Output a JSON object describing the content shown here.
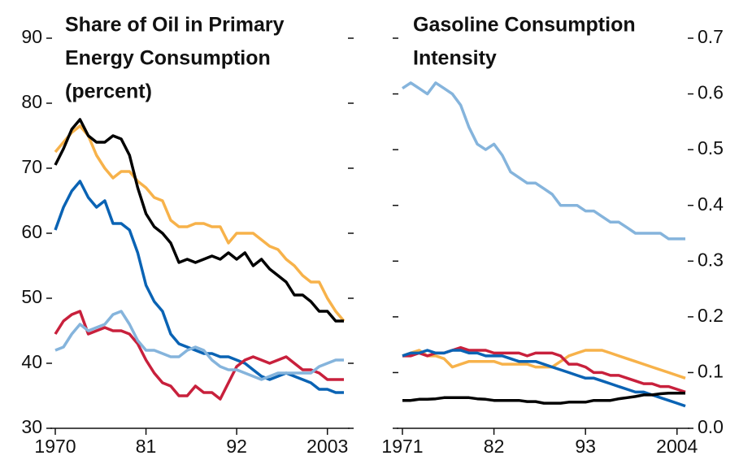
{
  "chart_data": [
    {
      "type": "line",
      "title": [
        "Share of Oil in Primary",
        "Energy Consumption",
        "(percent)"
      ],
      "x": [
        1970,
        1971,
        1972,
        1973,
        1974,
        1975,
        1976,
        1977,
        1978,
        1979,
        1980,
        1981,
        1982,
        1983,
        1984,
        1985,
        1986,
        1987,
        1988,
        1989,
        1990,
        1991,
        1992,
        1993,
        1994,
        1995,
        1996,
        1997,
        1998,
        1999,
        2000,
        2001,
        2002,
        2003,
        2004,
        2005
      ],
      "xlim": [
        1970,
        2005
      ],
      "xticks": [
        1970,
        {
          "value": 1981,
          "label": "81"
        },
        {
          "value": 1992,
          "label": "92"
        },
        2003
      ],
      "ylim": [
        30,
        90
      ],
      "yticks": [
        30,
        40,
        50,
        60,
        70,
        80,
        90
      ],
      "series": [
        {
          "color": "#f7b24a",
          "values": [
            72.5,
            74,
            75.5,
            76.5,
            75,
            72,
            70,
            68.5,
            69.5,
            69.5,
            68,
            67,
            65.5,
            65,
            62,
            61,
            61,
            61.5,
            61.5,
            61,
            61,
            58.5,
            60,
            60,
            60,
            59,
            58,
            57.5,
            56,
            55,
            53.5,
            52.5,
            52.5,
            50,
            48,
            46.5
          ]
        },
        {
          "color": "#000000",
          "values": [
            70.5,
            73,
            76,
            77.5,
            75,
            74,
            74,
            75,
            74.5,
            72,
            67,
            63,
            61,
            60,
            58.5,
            55.5,
            56,
            55.5,
            56,
            56.5,
            56,
            57,
            56,
            57,
            55,
            56,
            54.5,
            53.5,
            52.5,
            50.5,
            50.5,
            49.5,
            48,
            48,
            46.5,
            46.5
          ]
        },
        {
          "color": "#0a63b4",
          "values": [
            60.5,
            64,
            66.5,
            68,
            65.5,
            64,
            65,
            61.5,
            61.5,
            60.5,
            57,
            52,
            49.5,
            48,
            44.5,
            43,
            42.5,
            42,
            41.5,
            41.5,
            41,
            41,
            40.5,
            40,
            39,
            38,
            37.5,
            38,
            38.5,
            38,
            37.5,
            37,
            36,
            36,
            35.5,
            35.5
          ]
        },
        {
          "color": "#c8203c",
          "values": [
            44.5,
            46.5,
            47.5,
            48,
            44.5,
            45,
            45.5,
            45,
            45,
            44.5,
            43,
            40.5,
            38.5,
            37,
            36.5,
            35,
            35,
            36.5,
            35.5,
            35.5,
            34.5,
            37,
            39.5,
            40.5,
            41,
            40.5,
            40,
            40.5,
            41,
            40,
            39,
            39,
            38.5,
            37.5,
            37.5,
            37.5
          ]
        },
        {
          "color": "#85b4dc",
          "values": [
            42,
            42.5,
            44.5,
            46,
            45,
            45.5,
            46,
            47.5,
            48,
            46,
            43.5,
            42,
            42,
            41.5,
            41,
            41,
            42,
            42.5,
            42,
            40.5,
            39.5,
            39,
            39,
            38.5,
            38,
            37.5,
            38,
            38.5,
            38.5,
            38.5,
            38.5,
            38.5,
            39.5,
            40,
            40.5,
            40.5
          ]
        }
      ]
    },
    {
      "type": "line",
      "title": [
        "Gasoline Consumption",
        "Intensity"
      ],
      "x": [
        1971,
        1972,
        1973,
        1974,
        1975,
        1976,
        1977,
        1978,
        1979,
        1980,
        1981,
        1982,
        1983,
        1984,
        1985,
        1986,
        1987,
        1988,
        1989,
        1990,
        1991,
        1992,
        1993,
        1994,
        1995,
        1996,
        1997,
        1998,
        1999,
        2000,
        2001,
        2002,
        2003,
        2004,
        2005
      ],
      "xlim": [
        1971,
        2005
      ],
      "xticks": [
        1971,
        {
          "value": 1982,
          "label": "82"
        },
        {
          "value": 1993,
          "label": "93"
        },
        2004
      ],
      "y2lim": [
        0,
        0.7
      ],
      "y2ticks": [
        {
          "value": 0,
          "label": "0.0"
        },
        0.1,
        0.2,
        0.3,
        0.4,
        0.5,
        0.6,
        0.7
      ],
      "series": [
        {
          "axis": "y2",
          "color": "#85b4dc",
          "values": [
            0.61,
            0.62,
            0.61,
            0.6,
            0.62,
            0.61,
            0.6,
            0.58,
            0.54,
            0.51,
            0.5,
            0.51,
            0.49,
            0.46,
            0.45,
            0.44,
            0.44,
            0.43,
            0.42,
            0.4,
            0.4,
            0.4,
            0.39,
            0.39,
            0.38,
            0.37,
            0.37,
            0.36,
            0.35,
            0.35,
            0.35,
            0.35,
            0.34,
            0.34,
            0.34
          ]
        },
        {
          "axis": "y2",
          "color": "#f7b24a",
          "values": [
            0.13,
            0.135,
            0.14,
            0.13,
            0.13,
            0.125,
            0.11,
            0.115,
            0.12,
            0.12,
            0.12,
            0.12,
            0.115,
            0.115,
            0.115,
            0.115,
            0.11,
            0.11,
            0.11,
            0.12,
            0.13,
            0.135,
            0.14,
            0.14,
            0.14,
            0.135,
            0.13,
            0.125,
            0.12,
            0.115,
            0.11,
            0.105,
            0.1,
            0.095,
            0.09
          ]
        },
        {
          "axis": "y2",
          "color": "#c8203c",
          "values": [
            0.13,
            0.13,
            0.135,
            0.13,
            0.135,
            0.135,
            0.14,
            0.145,
            0.14,
            0.14,
            0.14,
            0.135,
            0.135,
            0.135,
            0.135,
            0.13,
            0.135,
            0.135,
            0.135,
            0.13,
            0.115,
            0.115,
            0.11,
            0.1,
            0.1,
            0.095,
            0.095,
            0.09,
            0.085,
            0.08,
            0.08,
            0.075,
            0.075,
            0.07,
            0.065
          ]
        },
        {
          "axis": "y2",
          "color": "#0a63b4",
          "values": [
            0.13,
            0.135,
            0.135,
            0.14,
            0.135,
            0.135,
            0.14,
            0.14,
            0.135,
            0.135,
            0.13,
            0.13,
            0.13,
            0.125,
            0.12,
            0.12,
            0.12,
            0.115,
            0.11,
            0.105,
            0.1,
            0.095,
            0.09,
            0.09,
            0.085,
            0.08,
            0.075,
            0.07,
            0.065,
            0.065,
            0.06,
            0.055,
            0.05,
            0.045,
            0.04
          ]
        },
        {
          "axis": "y2",
          "color": "#000000",
          "values": [
            0.05,
            0.05,
            0.052,
            0.052,
            0.053,
            0.055,
            0.055,
            0.055,
            0.055,
            0.053,
            0.052,
            0.05,
            0.05,
            0.05,
            0.05,
            0.048,
            0.048,
            0.045,
            0.045,
            0.045,
            0.047,
            0.047,
            0.047,
            0.05,
            0.05,
            0.05,
            0.053,
            0.055,
            0.057,
            0.06,
            0.06,
            0.062,
            0.063,
            0.063,
            0.063
          ]
        }
      ]
    }
  ]
}
